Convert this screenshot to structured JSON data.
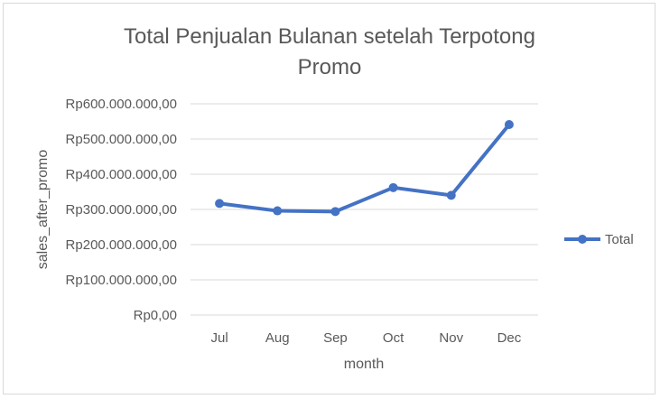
{
  "chart_data": {
    "type": "line",
    "title_lines": [
      "Total Penjualan Bulanan setelah Terpotong",
      "Promo"
    ],
    "xlabel": "month",
    "ylabel": "sales_after_promo",
    "categories": [
      "Jul",
      "Aug",
      "Sep",
      "Oct",
      "Nov",
      "Dec"
    ],
    "series": [
      {
        "name": "Total",
        "color": "#4472c4",
        "values": [
          317000000,
          296000000,
          294000000,
          362000000,
          340000000,
          541000000
        ]
      }
    ],
    "ylim": [
      0,
      600000000
    ],
    "yticks": [
      0,
      100000000,
      200000000,
      300000000,
      400000000,
      500000000,
      600000000
    ],
    "ytick_labels": [
      "Rp0,00",
      "Rp100.000.000,00",
      "Rp200.000.000,00",
      "Rp300.000.000,00",
      "Rp400.000.000,00",
      "Rp500.000.000,00",
      "Rp600.000.000,00"
    ],
    "grid": true,
    "legend_position": "right"
  }
}
